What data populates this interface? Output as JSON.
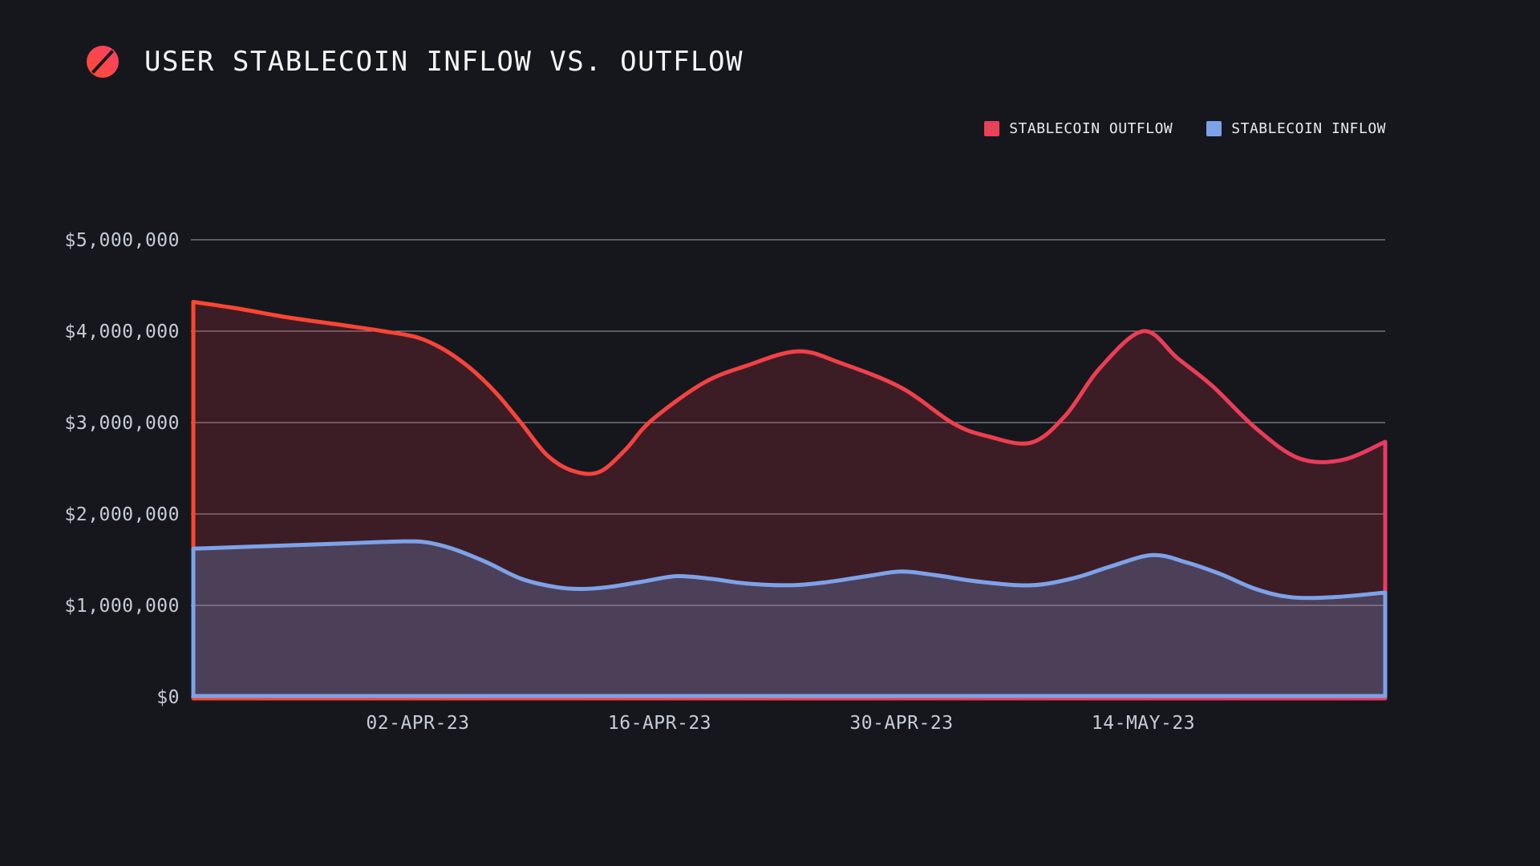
{
  "page": {
    "background": "#16171c"
  },
  "header": {
    "title": "USER STABLECOIN INFLOW VS. OUTFLOW",
    "logo_icon": "slashed-circle",
    "logo_gradient": [
      "#fb3f6a",
      "#fa4c31"
    ]
  },
  "legend": {
    "position": "top-right",
    "items": [
      {
        "label": "STABLECOIN OUTFLOW",
        "color": "#e84158"
      },
      {
        "label": "STABLECOIN INFLOW",
        "color": "#7da2e8"
      }
    ]
  },
  "chart_data": {
    "type": "area",
    "title": "USER STABLECOIN INFLOW VS. OUTFLOW",
    "grid": true,
    "legend_position": "top-right",
    "x_unit": "days from 20-MAR-23",
    "x_domain_days": [
      0,
      69
    ],
    "x_ticks": [
      {
        "label": "02-APR-23",
        "day": 13
      },
      {
        "label": "16-APR-23",
        "day": 27
      },
      {
        "label": "30-APR-23",
        "day": 41
      },
      {
        "label": "14-MAY-23",
        "day": 55
      }
    ],
    "y_unit": "USD",
    "ylim": [
      0,
      5000000
    ],
    "y_ticks": [
      {
        "label": "$0",
        "value": 0
      },
      {
        "label": "$1,000,000",
        "value": 1000000
      },
      {
        "label": "$2,000,000",
        "value": 2000000
      },
      {
        "label": "$3,000,000",
        "value": 3000000
      },
      {
        "label": "$4,000,000",
        "value": 4000000
      },
      {
        "label": "$5,000,000",
        "value": 5000000
      }
    ],
    "grid_color": "rgba(219,223,232,0.7)",
    "series": [
      {
        "name": "STABLECOIN OUTFLOW",
        "line_colors": [
          "#fb472e",
          "#e93a5f"
        ],
        "fill": "rgba(235,60,90,0.18)",
        "baseline_offset": 2,
        "points": [
          [
            0,
            4320000
          ],
          [
            2.5,
            4250000
          ],
          [
            5.5,
            4150000
          ],
          [
            8.5,
            4070000
          ],
          [
            11,
            4000000
          ],
          [
            13,
            3930000
          ],
          [
            14.5,
            3800000
          ],
          [
            16,
            3600000
          ],
          [
            17.5,
            3330000
          ],
          [
            19,
            2990000
          ],
          [
            20.5,
            2640000
          ],
          [
            22,
            2470000
          ],
          [
            23.5,
            2460000
          ],
          [
            25,
            2700000
          ],
          [
            26.5,
            3020000
          ],
          [
            29.5,
            3430000
          ],
          [
            32,
            3620000
          ],
          [
            35,
            3780000
          ],
          [
            37.5,
            3650000
          ],
          [
            41,
            3380000
          ],
          [
            44,
            2990000
          ],
          [
            46,
            2850000
          ],
          [
            48.5,
            2780000
          ],
          [
            50.5,
            3080000
          ],
          [
            52.5,
            3600000
          ],
          [
            55,
            4000000
          ],
          [
            57,
            3700000
          ],
          [
            59,
            3400000
          ],
          [
            61.5,
            2940000
          ],
          [
            64,
            2610000
          ],
          [
            66.5,
            2590000
          ],
          [
            69,
            2790000
          ]
        ]
      },
      {
        "name": "STABLECOIN INFLOW",
        "line_colors": [
          "#7da2e8",
          "#7da2e8"
        ],
        "fill": "rgba(125,162,232,0.26)",
        "baseline_offset": -1,
        "points": [
          [
            0,
            1620000
          ],
          [
            3,
            1640000
          ],
          [
            6,
            1660000
          ],
          [
            9,
            1680000
          ],
          [
            12,
            1700000
          ],
          [
            13.5,
            1690000
          ],
          [
            15,
            1620000
          ],
          [
            17,
            1470000
          ],
          [
            19,
            1290000
          ],
          [
            21,
            1200000
          ],
          [
            22.5,
            1180000
          ],
          [
            24,
            1200000
          ],
          [
            26,
            1260000
          ],
          [
            28,
            1320000
          ],
          [
            30,
            1290000
          ],
          [
            32,
            1240000
          ],
          [
            34.5,
            1220000
          ],
          [
            36.5,
            1250000
          ],
          [
            39,
            1320000
          ],
          [
            41,
            1370000
          ],
          [
            43,
            1330000
          ],
          [
            45.5,
            1260000
          ],
          [
            48.5,
            1220000
          ],
          [
            51,
            1300000
          ],
          [
            53,
            1420000
          ],
          [
            55.5,
            1550000
          ],
          [
            57.5,
            1470000
          ],
          [
            59.5,
            1340000
          ],
          [
            61.5,
            1180000
          ],
          [
            63.5,
            1090000
          ],
          [
            66,
            1090000
          ],
          [
            69,
            1140000
          ]
        ]
      }
    ]
  }
}
